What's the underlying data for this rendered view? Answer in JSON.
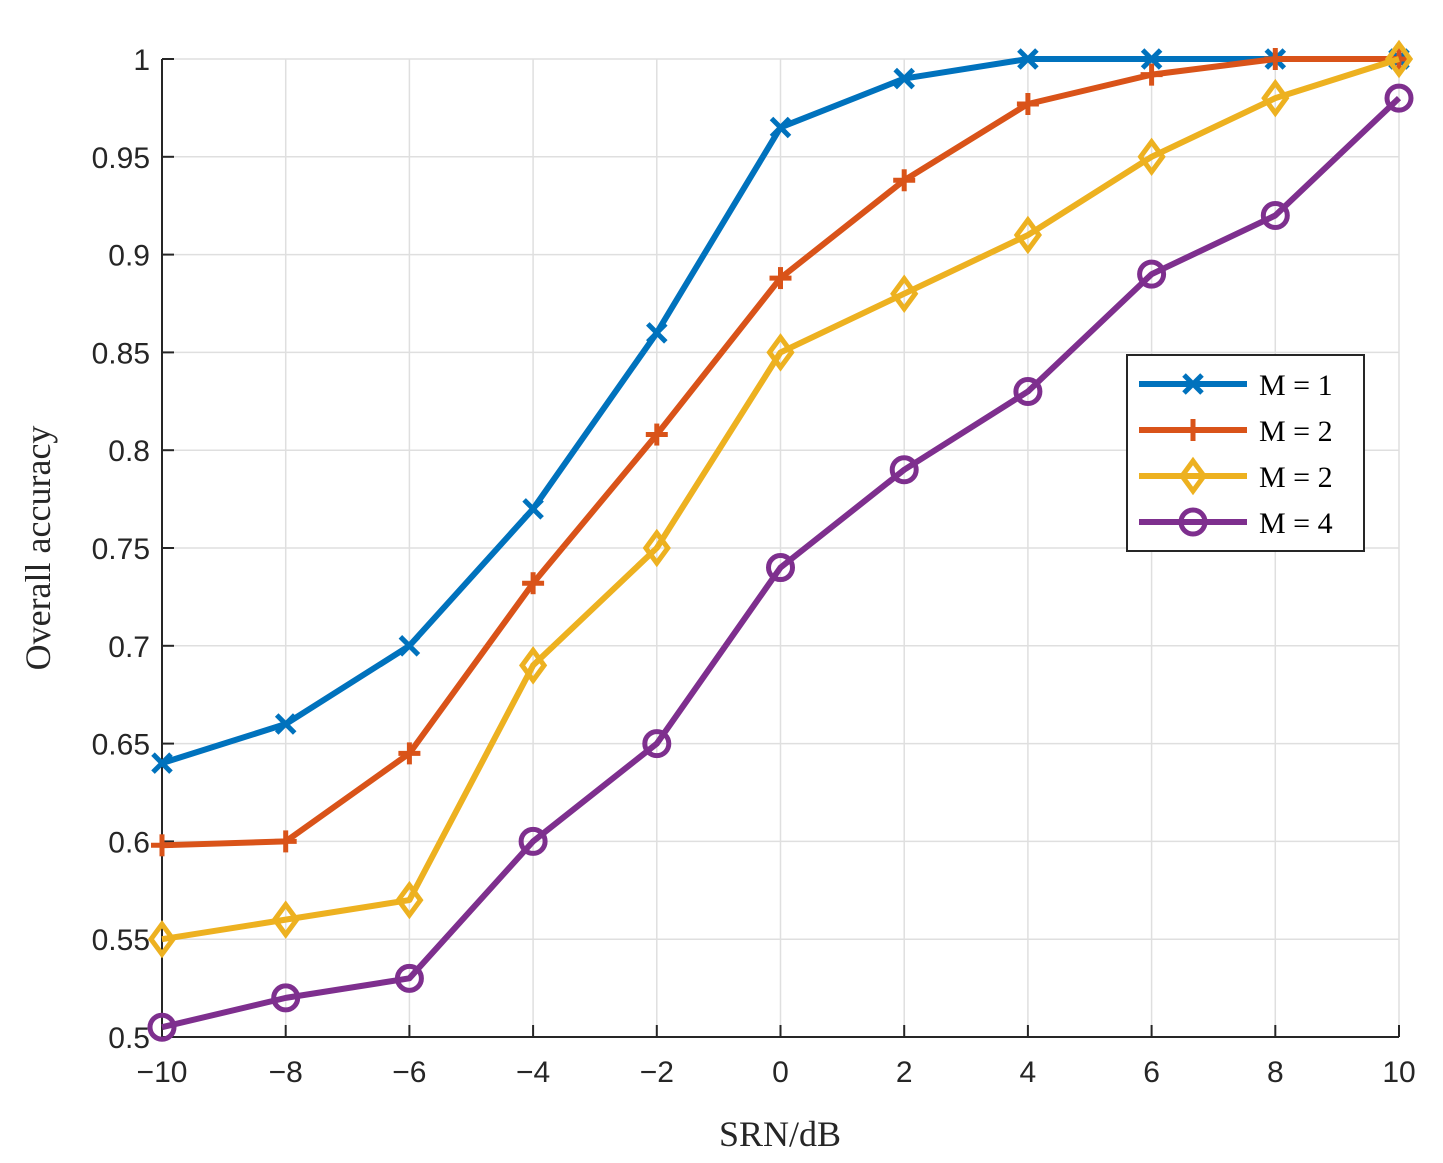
{
  "chart_data": {
    "type": "line",
    "title": "",
    "xlabel": "SRN/dB",
    "ylabel": "Overall accuracy",
    "xlim": [
      -10,
      10
    ],
    "ylim": [
      0.5,
      1
    ],
    "xticks": [
      -10,
      -8,
      -6,
      -4,
      -2,
      0,
      2,
      4,
      6,
      8,
      10
    ],
    "xtick_labels": [
      "−10",
      "−8",
      "−6",
      "−4",
      "−2",
      "0",
      "2",
      "4",
      "6",
      "8",
      "10"
    ],
    "yticks": [
      0.5,
      0.55,
      0.6,
      0.65,
      0.7,
      0.75,
      0.8,
      0.85,
      0.9,
      0.95,
      1
    ],
    "ytick_labels": [
      "0.5",
      "0.55",
      "0.6",
      "0.65",
      "0.7",
      "0.75",
      "0.8",
      "0.85",
      "0.9",
      "0.95",
      "1"
    ],
    "grid": true,
    "legend_position": "right",
    "x": [
      -10,
      -8,
      -6,
      -4,
      -2,
      0,
      2,
      4,
      6,
      8,
      10
    ],
    "series": [
      {
        "name": "M = 1",
        "color": "#0072BD",
        "marker": "x",
        "values": [
          0.64,
          0.66,
          0.7,
          0.77,
          0.86,
          0.965,
          0.99,
          1.0,
          1.0,
          1.0,
          1.0
        ]
      },
      {
        "name": "M = 2",
        "color": "#D95319",
        "marker": "plus",
        "values": [
          0.598,
          0.6,
          0.645,
          0.732,
          0.808,
          0.888,
          0.938,
          0.977,
          0.992,
          1.0,
          1.0
        ]
      },
      {
        "name": "M = 2",
        "color": "#EDB120",
        "marker": "diamond",
        "values": [
          0.55,
          0.56,
          0.57,
          0.69,
          0.75,
          0.85,
          0.88,
          0.91,
          0.95,
          0.98,
          1.0
        ]
      },
      {
        "name": "M = 4",
        "color": "#7E2F8E",
        "marker": "circle",
        "values": [
          0.505,
          0.52,
          0.53,
          0.6,
          0.65,
          0.74,
          0.79,
          0.83,
          0.89,
          0.92,
          0.98
        ]
      }
    ]
  }
}
